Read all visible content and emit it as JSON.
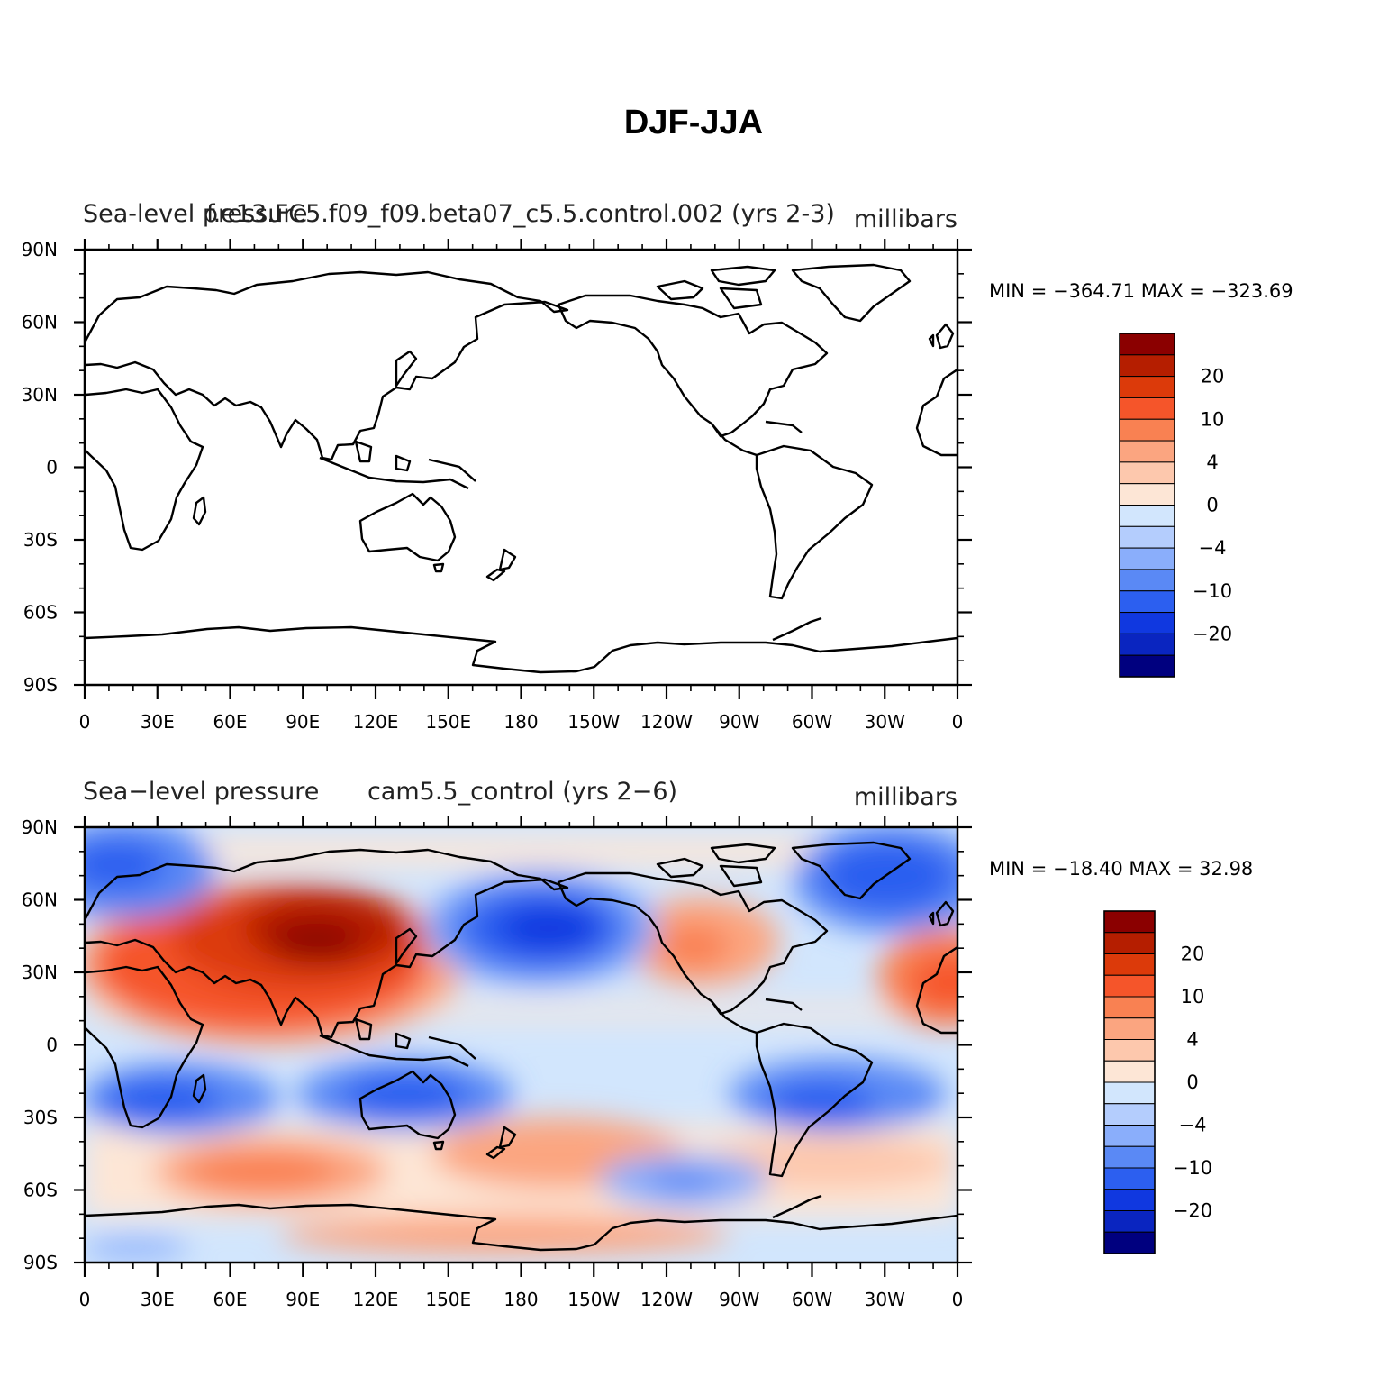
{
  "figure_title": "DJF-JJA",
  "panels": [
    {
      "left_title": "Sea-level pressure",
      "center_title": "f.e13.FC5.f09_f09.beta07_c5.5.control.002 (yrs 2-3)",
      "units": "millibars",
      "minmax": "MIN = −364.71  MAX = −323.69",
      "field": "empty"
    },
    {
      "left_title": "Sea−level pressure",
      "center_title": "cam5.5_control (yrs 2−6)",
      "units": "millibars",
      "minmax": "MIN = −18.40  MAX =   32.98",
      "field": "filled"
    }
  ],
  "axes": {
    "lat_labels": [
      "90N",
      "60N",
      "30N",
      "0",
      "30S",
      "60S",
      "90S"
    ],
    "lon_labels": [
      "0",
      "30E",
      "60E",
      "90E",
      "120E",
      "150E",
      "180",
      "150W",
      "120W",
      "90W",
      "60W",
      "30W",
      "0"
    ]
  },
  "colorbar": {
    "labels": [
      "20",
      "10",
      "4",
      "0",
      "−4",
      "−10",
      "−20"
    ],
    "colors": [
      "#8b0000",
      "#b51e00",
      "#dc3a0a",
      "#f5552a",
      "#f98152",
      "#fba580",
      "#fdc8ad",
      "#fde6d6",
      "#d2e6fd",
      "#b4cdfd",
      "#8aaefb",
      "#5a89f5",
      "#2c5ff0",
      "#1038e0",
      "#0a25c0",
      "#00007f"
    ]
  },
  "colors": {
    "background": "#ffffff",
    "coastline": "#000000"
  }
}
